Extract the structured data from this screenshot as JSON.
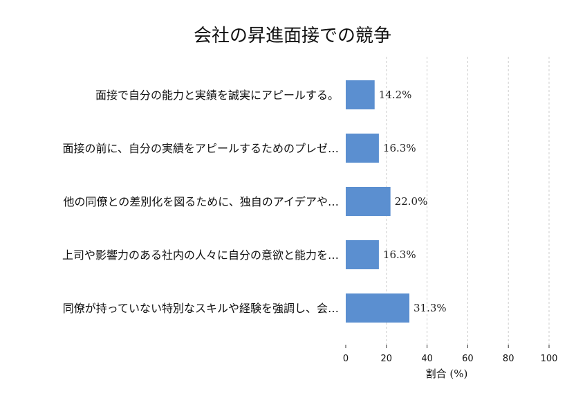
{
  "chart_data": {
    "type": "bar",
    "orientation": "horizontal",
    "title": "会社の昇進面接での競争",
    "xlabel": "割合 (%)",
    "ylabel": "",
    "xlim": [
      0,
      100
    ],
    "xticks": [
      0,
      20,
      40,
      60,
      80,
      100
    ],
    "grid": true,
    "legend": "none",
    "bar_color": "#5b8fd0",
    "categories": [
      "面接で自分の能力と実績を誠実にアピールする。",
      "面接の前に、自分の実績をアピールするためのプレゼ…",
      "他の同僚との差別化を図るために、独自のアイデアや…",
      "上司や影響力のある社内の人々に自分の意欲と能力を…",
      "同僚が持っていない特別なスキルや経験を強調し、会…"
    ],
    "values": [
      14.2,
      16.3,
      22.0,
      16.3,
      31.3
    ],
    "value_labels": [
      "14.2%",
      "16.3%",
      "22.0%",
      "16.3%",
      "31.3%"
    ]
  }
}
